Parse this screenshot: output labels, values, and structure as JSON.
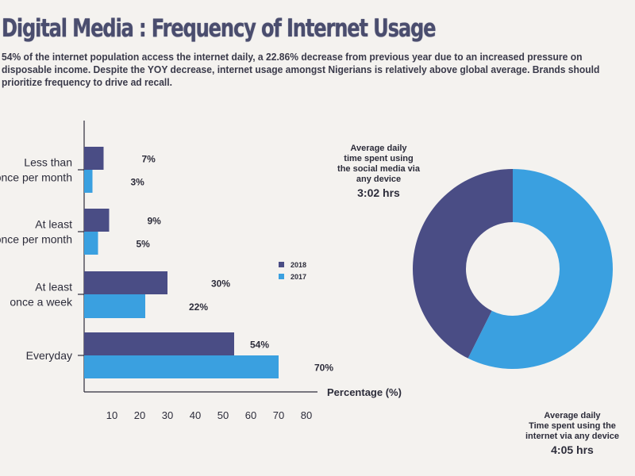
{
  "header": {
    "title": "Digital Media : Frequency of Internet Usage",
    "intro": "54% of the internet population access the internet daily, a 22.86% decrease from previous year due to an increased pressure on disposable income. Despite the YOY decrease, internet usage amongst Nigerians is relatively above global average. Brands should prioritize frequency to drive ad recall."
  },
  "colors": {
    "s2018": "#4a4d85",
    "s2017": "#3aa0e0",
    "axis": "#2c2c3a",
    "bg": "#f4f2ef"
  },
  "chart_data": [
    {
      "type": "bar",
      "orientation": "horizontal",
      "categories": [
        [
          "Less than",
          "once per month"
        ],
        [
          "At least",
          "once per month"
        ],
        [
          "At least",
          "once a week"
        ],
        [
          "Everyday"
        ]
      ],
      "series": [
        {
          "name": "2018",
          "values": [
            7,
            9,
            30,
            54
          ],
          "labels": [
            "7%",
            "9%",
            "30%",
            "54%"
          ]
        },
        {
          "name": "2017",
          "values": [
            3,
            5,
            22,
            70
          ],
          "labels": [
            "3%",
            "5%",
            "22%",
            "70%"
          ]
        }
      ],
      "xlabel": "Percentage (%)",
      "xticks": [
        10,
        20,
        30,
        40,
        50,
        60,
        70,
        80
      ],
      "xlim": [
        0,
        82
      ],
      "legend": "center-right"
    },
    {
      "type": "pie",
      "style": "donut",
      "slices": [
        {
          "name": "Average daily time spent using the social media via any device",
          "value": 3.03,
          "label": "3:02 hrs"
        },
        {
          "name": "Average daily Time spent using the internet via any device",
          "value": 4.08,
          "label": "4:05 hrs"
        }
      ]
    }
  ],
  "donut_captions": {
    "social": {
      "lines": [
        "Average daily",
        "time spent using",
        "the social media via",
        "any device"
      ],
      "value": "3:02 hrs"
    },
    "internet": {
      "lines": [
        "Average daily",
        "Time spent using the",
        "internet via any device"
      ],
      "value": "4:05 hrs"
    }
  }
}
